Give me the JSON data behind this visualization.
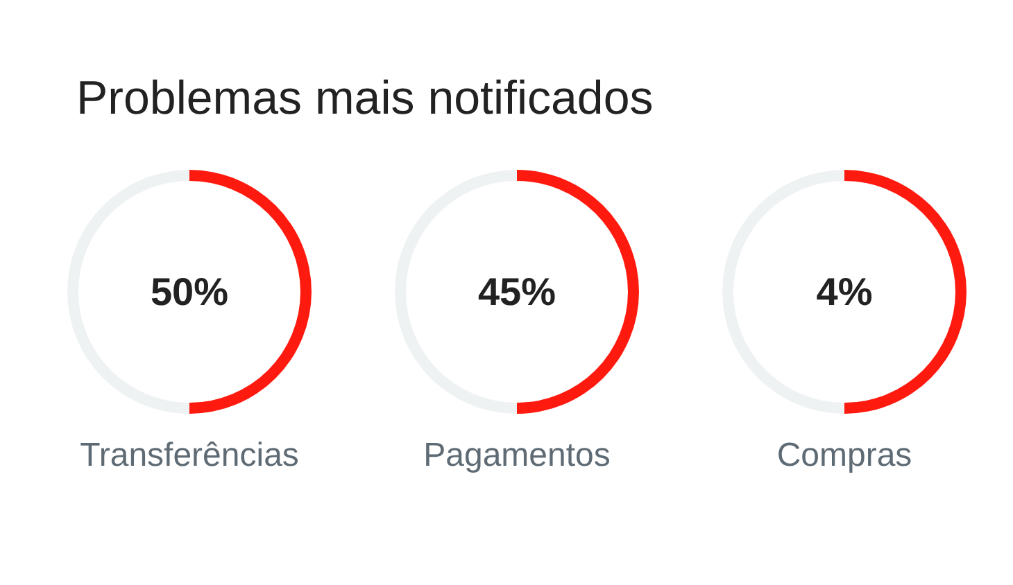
{
  "chart_data": [
    {
      "type": "donut",
      "title": "Problemas mais notificados",
      "categories": [
        null,
        null
      ],
      "values": [
        50,
        50
      ],
      "colors": [
        "#ff1a0f",
        "#eff2f2"
      ],
      "annotations": [
        "50%"
      ],
      "xlabel": "Transferências"
    },
    {
      "type": "donut",
      "categories": [
        null,
        null
      ],
      "values": [
        50,
        50
      ],
      "colors": [
        "#ff1a0f",
        "#eff2f2"
      ],
      "annotations": [
        "45%"
      ],
      "xlabel": "Pagamentos"
    },
    {
      "type": "donut",
      "categories": [
        null,
        null
      ],
      "values": [
        50,
        50
      ],
      "colors": [
        "#ff1a0f",
        "#eff2f2"
      ],
      "annotations": [
        "4%"
      ],
      "xlabel": "Compras"
    }
  ]
}
